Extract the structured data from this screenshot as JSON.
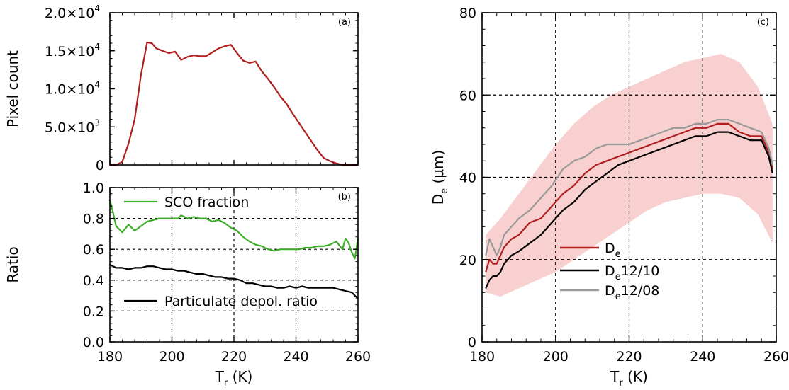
{
  "chart_data": [
    {
      "id": "a",
      "type": "line",
      "panel_label": "(a)",
      "xlabel": "",
      "ylabel": "Pixel count",
      "xlim": [
        180,
        260
      ],
      "ylim": [
        0,
        20000
      ],
      "xticks": [
        180,
        200,
        220,
        240,
        260
      ],
      "xtick_labels": [
        "",
        "",
        "",
        "",
        ""
      ],
      "yticks": [
        0,
        5000,
        10000,
        15000,
        20000
      ],
      "ytick_labels": [
        "0",
        "5.0×10",
        "1.0×10",
        "1.5×10",
        "2.0×10"
      ],
      "ytick_exponents": [
        "",
        "3",
        "4",
        "4",
        "4"
      ],
      "grid": false,
      "series": [
        {
          "color": "#b01e1e",
          "x": [
            180,
            182,
            184,
            186,
            188,
            190,
            192,
            193.5,
            195,
            197,
            199,
            201,
            203,
            205,
            207,
            209,
            211,
            213,
            215,
            217,
            219,
            221,
            223,
            225,
            227,
            229,
            231,
            233,
            235,
            237,
            239,
            241,
            243,
            245,
            247,
            249,
            251,
            253,
            255,
            257,
            259,
            260
          ],
          "y": [
            0,
            0,
            400,
            2800,
            6000,
            11800,
            16100,
            16000,
            15300,
            15000,
            14700,
            14900,
            13800,
            14200,
            14400,
            14300,
            14300,
            14800,
            15300,
            15600,
            15800,
            14700,
            13700,
            13400,
            13600,
            12300,
            11300,
            10200,
            9000,
            8000,
            6700,
            5500,
            4300,
            3100,
            1900,
            900,
            500,
            200,
            0,
            0,
            0,
            0
          ]
        }
      ]
    },
    {
      "id": "b",
      "type": "line",
      "panel_label": "(b)",
      "xlabel": "T",
      "xlabel_sub": "r",
      "xlabel_unit": " (K)",
      "ylabel": "Ratio",
      "xlim": [
        180,
        260
      ],
      "ylim": [
        0,
        1.0
      ],
      "xticks": [
        180,
        200,
        220,
        240,
        260
      ],
      "xtick_labels": [
        "180",
        "200",
        "220",
        "240",
        "260"
      ],
      "yticks": [
        0,
        0.2,
        0.4,
        0.6,
        0.8,
        1.0
      ],
      "ytick_labels": [
        "0.0",
        "0.2",
        "0.4",
        "0.6",
        "0.8",
        "1.0"
      ],
      "grid": true,
      "series": [
        {
          "name": "SCO fraction",
          "color": "#3fae2a",
          "x": [
            180,
            181,
            182,
            184,
            186,
            188,
            190,
            192,
            194,
            196,
            198,
            200,
            202,
            203,
            205,
            207,
            209,
            211,
            213,
            215,
            217,
            219,
            221,
            223,
            225,
            227,
            229,
            231,
            233,
            235,
            237,
            239,
            241,
            243,
            245,
            247,
            249,
            251,
            253,
            255,
            256,
            257,
            258,
            259,
            260
          ],
          "y": [
            0.92,
            0.84,
            0.75,
            0.71,
            0.76,
            0.72,
            0.75,
            0.78,
            0.79,
            0.8,
            0.8,
            0.8,
            0.8,
            0.82,
            0.8,
            0.81,
            0.8,
            0.8,
            0.78,
            0.79,
            0.77,
            0.74,
            0.72,
            0.68,
            0.65,
            0.63,
            0.62,
            0.6,
            0.59,
            0.6,
            0.6,
            0.6,
            0.6,
            0.61,
            0.61,
            0.62,
            0.62,
            0.63,
            0.65,
            0.6,
            0.67,
            0.64,
            0.58,
            0.54,
            0.67
          ]
        },
        {
          "name": "Particulate depol. ratio",
          "color": "#000000",
          "x": [
            180,
            182,
            184,
            186,
            188,
            190,
            192,
            194,
            196,
            198,
            200,
            202,
            204,
            206,
            208,
            210,
            212,
            214,
            216,
            218,
            220,
            222,
            224,
            226,
            228,
            230,
            232,
            234,
            236,
            238,
            240,
            242,
            244,
            246,
            248,
            250,
            252,
            254,
            256,
            258,
            259,
            260
          ],
          "y": [
            0.5,
            0.48,
            0.48,
            0.47,
            0.48,
            0.48,
            0.49,
            0.49,
            0.48,
            0.47,
            0.47,
            0.46,
            0.46,
            0.45,
            0.44,
            0.44,
            0.43,
            0.42,
            0.42,
            0.41,
            0.41,
            0.4,
            0.38,
            0.38,
            0.37,
            0.36,
            0.36,
            0.35,
            0.35,
            0.36,
            0.35,
            0.36,
            0.35,
            0.35,
            0.35,
            0.35,
            0.35,
            0.34,
            0.33,
            0.32,
            0.3,
            0.28
          ]
        }
      ]
    },
    {
      "id": "c",
      "type": "line",
      "panel_label": "(c)",
      "xlabel": "T",
      "xlabel_sub": "r",
      "xlabel_unit": " (K)",
      "ylabel": "D",
      "ylabel_sub": "e",
      "ylabel_unit": " (μm)",
      "xlim": [
        180,
        260
      ],
      "ylim": [
        0,
        80
      ],
      "xticks": [
        180,
        200,
        220,
        240,
        260
      ],
      "xtick_labels": [
        "180",
        "200",
        "220",
        "240",
        "260"
      ],
      "yticks": [
        0,
        20,
        40,
        60,
        80
      ],
      "ytick_labels": [
        "0",
        "20",
        "40",
        "60",
        "80"
      ],
      "grid": true,
      "legend_position": "bottom-center",
      "band": {
        "color": "#f7c8c8",
        "x": [
          181,
          185,
          190,
          195,
          200,
          205,
          210,
          215,
          220,
          225,
          230,
          235,
          240,
          245,
          250,
          255,
          259
        ],
        "upper": [
          26,
          30,
          36,
          42,
          48,
          53,
          57,
          60,
          62,
          64,
          66,
          68,
          69,
          70,
          68,
          62,
          53
        ],
        "lower": [
          12,
          11,
          13,
          15,
          17,
          20,
          23,
          26,
          29,
          32,
          34,
          35,
          36,
          36,
          35,
          31,
          24
        ]
      },
      "series": [
        {
          "name": "D",
          "name_sub": "e",
          "name_suffix": "",
          "color": "#b01e1e",
          "x": [
            181,
            182,
            183,
            184,
            185,
            186,
            188,
            190,
            193,
            196,
            199,
            202,
            205,
            208,
            211,
            214,
            217,
            220,
            223,
            226,
            229,
            232,
            235,
            238,
            241,
            244,
            247,
            250,
            253,
            256,
            258,
            259
          ],
          "y": [
            17,
            20,
            19,
            19,
            21,
            23,
            25,
            26,
            29,
            30,
            33,
            36,
            38,
            41,
            43,
            44,
            45,
            46,
            47,
            48,
            49,
            50,
            51,
            52,
            52,
            53,
            53,
            51,
            50,
            50,
            46,
            42
          ]
        },
        {
          "name": "D",
          "name_sub": "e",
          "name_suffix": "12/10",
          "color": "#000000",
          "x": [
            181,
            182,
            183,
            184,
            185,
            186,
            188,
            190,
            193,
            196,
            199,
            202,
            205,
            208,
            211,
            214,
            217,
            220,
            223,
            226,
            229,
            232,
            235,
            238,
            241,
            244,
            247,
            250,
            253,
            256,
            258,
            259
          ],
          "y": [
            13,
            15,
            16,
            16,
            17,
            19,
            21,
            22,
            24,
            26,
            29,
            32,
            34,
            37,
            39,
            41,
            43,
            44,
            45,
            46,
            47,
            48,
            49,
            50,
            50,
            51,
            51,
            50,
            49,
            49,
            45,
            41
          ]
        },
        {
          "name": "D",
          "name_sub": "e",
          "name_suffix": "12/08",
          "color": "#999999",
          "x": [
            181,
            182,
            183,
            184,
            185,
            186,
            188,
            190,
            193,
            196,
            199,
            202,
            205,
            208,
            211,
            214,
            217,
            220,
            223,
            226,
            229,
            232,
            235,
            238,
            241,
            244,
            247,
            250,
            253,
            256,
            258,
            259
          ],
          "y": [
            21,
            25,
            23,
            21,
            23,
            26,
            28,
            30,
            32,
            35,
            38,
            42,
            44,
            45,
            47,
            48,
            48,
            48,
            49,
            50,
            51,
            52,
            52,
            53,
            53,
            54,
            54,
            53,
            52,
            51,
            47,
            43
          ]
        }
      ]
    }
  ]
}
